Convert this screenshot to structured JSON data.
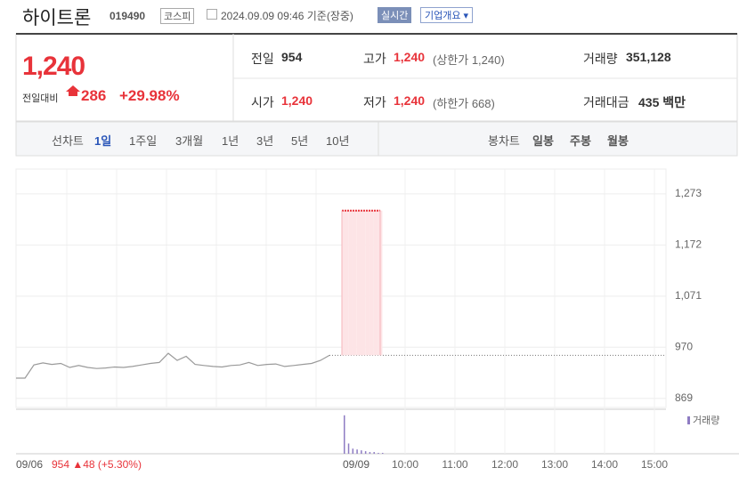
{
  "header": {
    "name": "하이트론",
    "code": "019490",
    "market": "코스피",
    "timestamp": "2024.09.09 09:46 기준(장중)",
    "realtime": "실시간",
    "company": "기업개요"
  },
  "quote": {
    "price": "1,240",
    "change_label": "전일대비",
    "change": "286",
    "change_pct": "+29.98%",
    "fields": [
      {
        "label": "전일",
        "value": "954"
      },
      {
        "label": "고가",
        "value": "1,240",
        "note": "(상한가 1,240)"
      },
      {
        "label": "거래량",
        "value": "351,128"
      },
      {
        "label": "시가",
        "value": "1,240"
      },
      {
        "label": "저가",
        "value": "1,240",
        "note": "(하한가 668)"
      },
      {
        "label": "거래대금",
        "value": "435 백만"
      }
    ]
  },
  "tabs": {
    "line_label": "선차트",
    "line": [
      "1일",
      "1주일",
      "3개월",
      "1년",
      "3년",
      "5년",
      "10년"
    ],
    "candle_label": "봉차트",
    "candle": [
      "일봉",
      "주봉",
      "월봉"
    ]
  },
  "chart_data": {
    "type": "line",
    "ylim": [
      851,
      1322
    ],
    "yticks": [
      869,
      970,
      {
        "value": 1071,
        "label": "1,071"
      },
      {
        "value": 1172,
        "label": "1,172"
      },
      {
        "value": 1273,
        "label": "1,273"
      }
    ],
    "reference": 954,
    "color": "#9a9a9a",
    "today_color": "#e8333a",
    "sessions": [
      {
        "label": "09/06",
        "summary": "954 ▲48 (+5.30%)",
        "values": [
          909,
          909,
          935,
          939,
          936,
          938,
          930,
          934,
          930,
          928,
          929,
          931,
          930,
          932,
          935,
          938,
          940,
          958,
          944,
          952,
          936,
          934,
          932,
          931,
          934,
          935,
          940,
          934,
          936,
          937,
          932,
          934,
          936,
          938,
          944,
          954
        ]
      },
      {
        "label": "09/09",
        "values": [
          1240,
          1240,
          1240,
          1240,
          1240,
          1240,
          1240,
          1240,
          1240,
          1240
        ],
        "volume": [
          45,
          12,
          6,
          5,
          4,
          3,
          2,
          2,
          1,
          1
        ]
      }
    ],
    "vlim": [
      0,
      50
    ],
    "volume_label": "거래량",
    "xticks": [
      "10:00",
      "11:00",
      "12:00",
      "13:00",
      "14:00",
      "15:00"
    ]
  }
}
